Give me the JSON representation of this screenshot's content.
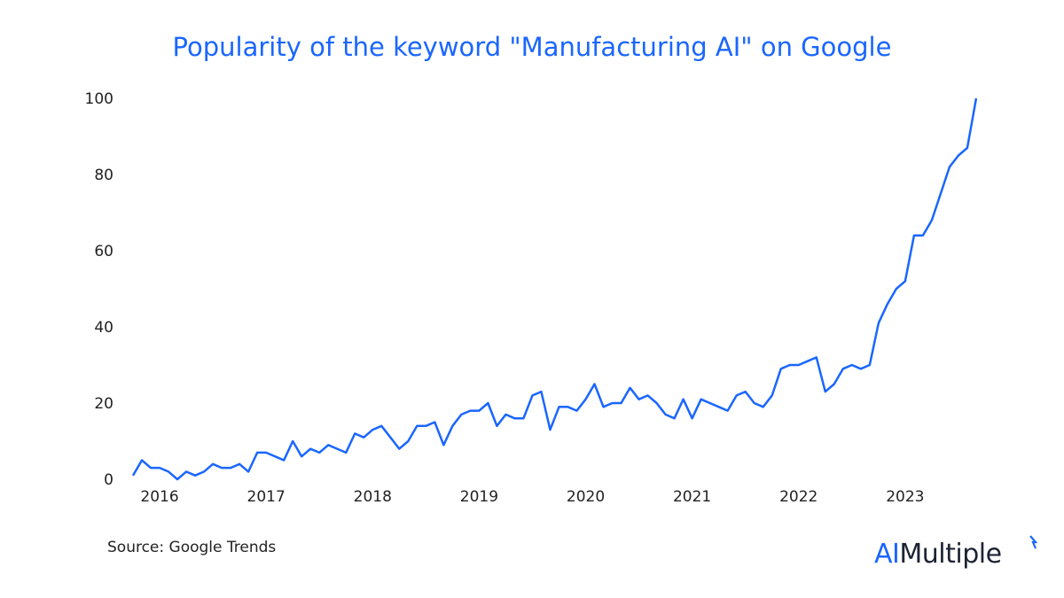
{
  "chart_data": {
    "type": "line",
    "title": "Popularity of the keyword \"Manufacturing AI\" on Google",
    "xlabel": "",
    "ylabel": "",
    "start_month": "2015-10",
    "end_month": "2023-09",
    "x_tick_labels": [
      "2016",
      "2017",
      "2018",
      "2019",
      "2020",
      "2021",
      "2022",
      "2023"
    ],
    "y_ticks": [
      0,
      20,
      40,
      60,
      80,
      100
    ],
    "ylim": [
      0,
      100
    ],
    "grid": false,
    "line_color": "#1a66ff",
    "values": [
      1,
      5,
      3,
      3,
      2,
      0,
      2,
      1,
      2,
      4,
      3,
      3,
      4,
      2,
      7,
      7,
      6,
      5,
      10,
      6,
      8,
      7,
      9,
      8,
      7,
      12,
      11,
      13,
      14,
      11,
      8,
      10,
      14,
      14,
      15,
      9,
      14,
      17,
      18,
      18,
      20,
      14,
      17,
      16,
      16,
      22,
      23,
      13,
      19,
      19,
      18,
      21,
      25,
      19,
      20,
      20,
      24,
      21,
      22,
      20,
      17,
      16,
      21,
      16,
      21,
      20,
      19,
      18,
      22,
      23,
      20,
      19,
      22,
      29,
      30,
      30,
      31,
      32,
      23,
      25,
      29,
      30,
      29,
      30,
      41,
      46,
      50,
      52,
      64,
      64,
      68,
      75,
      82,
      85,
      87,
      100
    ]
  },
  "source": "Source: Google Trends",
  "logo": {
    "part1": "AI",
    "part2": "Multiple",
    "accent": "#1a66ff"
  }
}
